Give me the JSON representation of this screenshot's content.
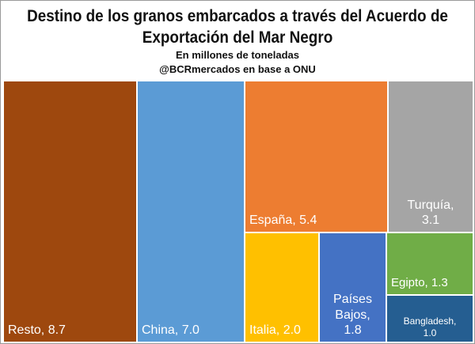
{
  "title_lines": [
    "Destino de los granos embarcados a través del Acuerdo de",
    "Exportación del Mar Negro"
  ],
  "subtitle": "En millones de toneladas",
  "source": "@BCRmercados en base a ONU",
  "chart_data": {
    "type": "treemap",
    "unit": "millones de toneladas",
    "items": [
      {
        "name": "Resto",
        "value": 8.7,
        "label": "Resto, 8.7",
        "color": "#9e480e"
      },
      {
        "name": "China",
        "value": 7.0,
        "label": "China, 7.0",
        "color": "#5b9bd5"
      },
      {
        "name": "España",
        "value": 5.4,
        "label": "España, 5.4",
        "color": "#ed7d31"
      },
      {
        "name": "Turquía",
        "value": 3.1,
        "label_lines": [
          "Turquía,",
          "3.1"
        ],
        "color": "#a5a5a5"
      },
      {
        "name": "Italia",
        "value": 2.0,
        "label": "Italia, 2.0",
        "color": "#ffc000"
      },
      {
        "name": "Países Bajos",
        "value": 1.8,
        "label_lines": [
          "Países",
          "Bajos,",
          "1.8"
        ],
        "color": "#4472c4"
      },
      {
        "name": "Egipto",
        "value": 1.3,
        "label": "Egipto, 1.3",
        "color": "#70ad47"
      },
      {
        "name": "Bangladesh",
        "value": 1.0,
        "label_lines": [
          "Bangladesh,",
          "1.0"
        ],
        "color": "#255e91"
      }
    ]
  }
}
